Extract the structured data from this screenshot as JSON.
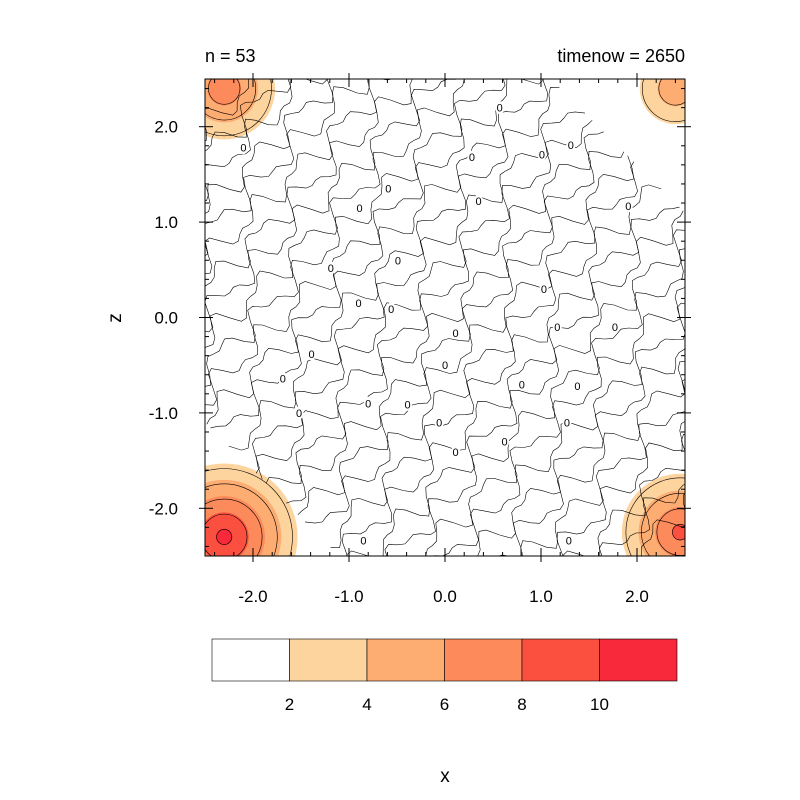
{
  "chart_data": {
    "type": "heatmap",
    "title_left": "n = 53",
    "title_right": "timenow = 2650",
    "xlabel": "x",
    "ylabel": "z",
    "xlim": [
      -2.5,
      2.5
    ],
    "ylim": [
      -2.5,
      2.5
    ],
    "x_ticks": [
      -2.0,
      -1.0,
      0.0,
      1.0,
      2.0
    ],
    "x_tick_labels": [
      "-2.0",
      "-1.0",
      "0.0",
      "1.0",
      "2.0"
    ],
    "y_ticks": [
      -2.0,
      -1.0,
      0.0,
      1.0,
      2.0
    ],
    "y_tick_labels": [
      "-2.0",
      "-1.0",
      "0.0",
      "1.0",
      "2.0"
    ],
    "colorbar": {
      "levels": [
        2,
        4,
        6,
        8,
        10
      ],
      "level_labels": [
        "2",
        "4",
        "6",
        "8",
        "10"
      ],
      "colors": [
        "#ffffff",
        "#fdd49e",
        "#fdac72",
        "#fc8a5a",
        "#fb4f3f",
        "#f8293a"
      ]
    },
    "hotspots": [
      {
        "location": "bottom-left",
        "x": -2.3,
        "z": -2.3,
        "peak": 11
      },
      {
        "location": "top-left",
        "x": -2.3,
        "z": 2.4,
        "peak": 8
      },
      {
        "location": "bottom-right",
        "x": 2.45,
        "z": -2.25,
        "peak": 9
      },
      {
        "location": "top-right",
        "x": 2.4,
        "z": 2.4,
        "peak": 6
      }
    ],
    "contour_labels": [
      {
        "x": -2.1,
        "z": 1.78,
        "text": "0"
      },
      {
        "x": 0.57,
        "z": 2.2,
        "text": "0"
      },
      {
        "x": 0.28,
        "z": 1.68,
        "text": "0"
      },
      {
        "x": 1.01,
        "z": 1.71,
        "text": "0"
      },
      {
        "x": 1.31,
        "z": 1.81,
        "text": "0"
      },
      {
        "x": -0.59,
        "z": 1.35,
        "text": "0"
      },
      {
        "x": -0.89,
        "z": 1.15,
        "text": "0"
      },
      {
        "x": 0.35,
        "z": 1.22,
        "text": "0"
      },
      {
        "x": 1.91,
        "z": 1.17,
        "text": "0"
      },
      {
        "x": -0.49,
        "z": 0.6,
        "text": "0"
      },
      {
        "x": -1.19,
        "z": 0.52,
        "text": "0"
      },
      {
        "x": -0.9,
        "z": 0.15,
        "text": "0"
      },
      {
        "x": -0.56,
        "z": 0.09,
        "text": "0"
      },
      {
        "x": 1.03,
        "z": 0.3,
        "text": "0"
      },
      {
        "x": 0.11,
        "z": -0.16,
        "text": "0"
      },
      {
        "x": 1.17,
        "z": -0.1,
        "text": "0"
      },
      {
        "x": 1.77,
        "z": -0.1,
        "text": "0"
      },
      {
        "x": -1.39,
        "z": -0.38,
        "text": "0"
      },
      {
        "x": 0.0,
        "z": -0.5,
        "text": "0"
      },
      {
        "x": -1.69,
        "z": -0.64,
        "text": "0"
      },
      {
        "x": 0.8,
        "z": -0.7,
        "text": "0"
      },
      {
        "x": 1.38,
        "z": -0.72,
        "text": "0"
      },
      {
        "x": -0.8,
        "z": -0.9,
        "text": "0"
      },
      {
        "x": -0.39,
        "z": -0.91,
        "text": "0"
      },
      {
        "x": -1.52,
        "z": -1.0,
        "text": "0"
      },
      {
        "x": -0.06,
        "z": -1.1,
        "text": "0"
      },
      {
        "x": 1.27,
        "z": -1.1,
        "text": "0"
      },
      {
        "x": 0.62,
        "z": -1.3,
        "text": "0"
      },
      {
        "x": 0.11,
        "z": -1.41,
        "text": "0"
      },
      {
        "x": -0.85,
        "z": -2.34,
        "text": "0"
      },
      {
        "x": 1.29,
        "z": -2.34,
        "text": "0"
      }
    ]
  }
}
